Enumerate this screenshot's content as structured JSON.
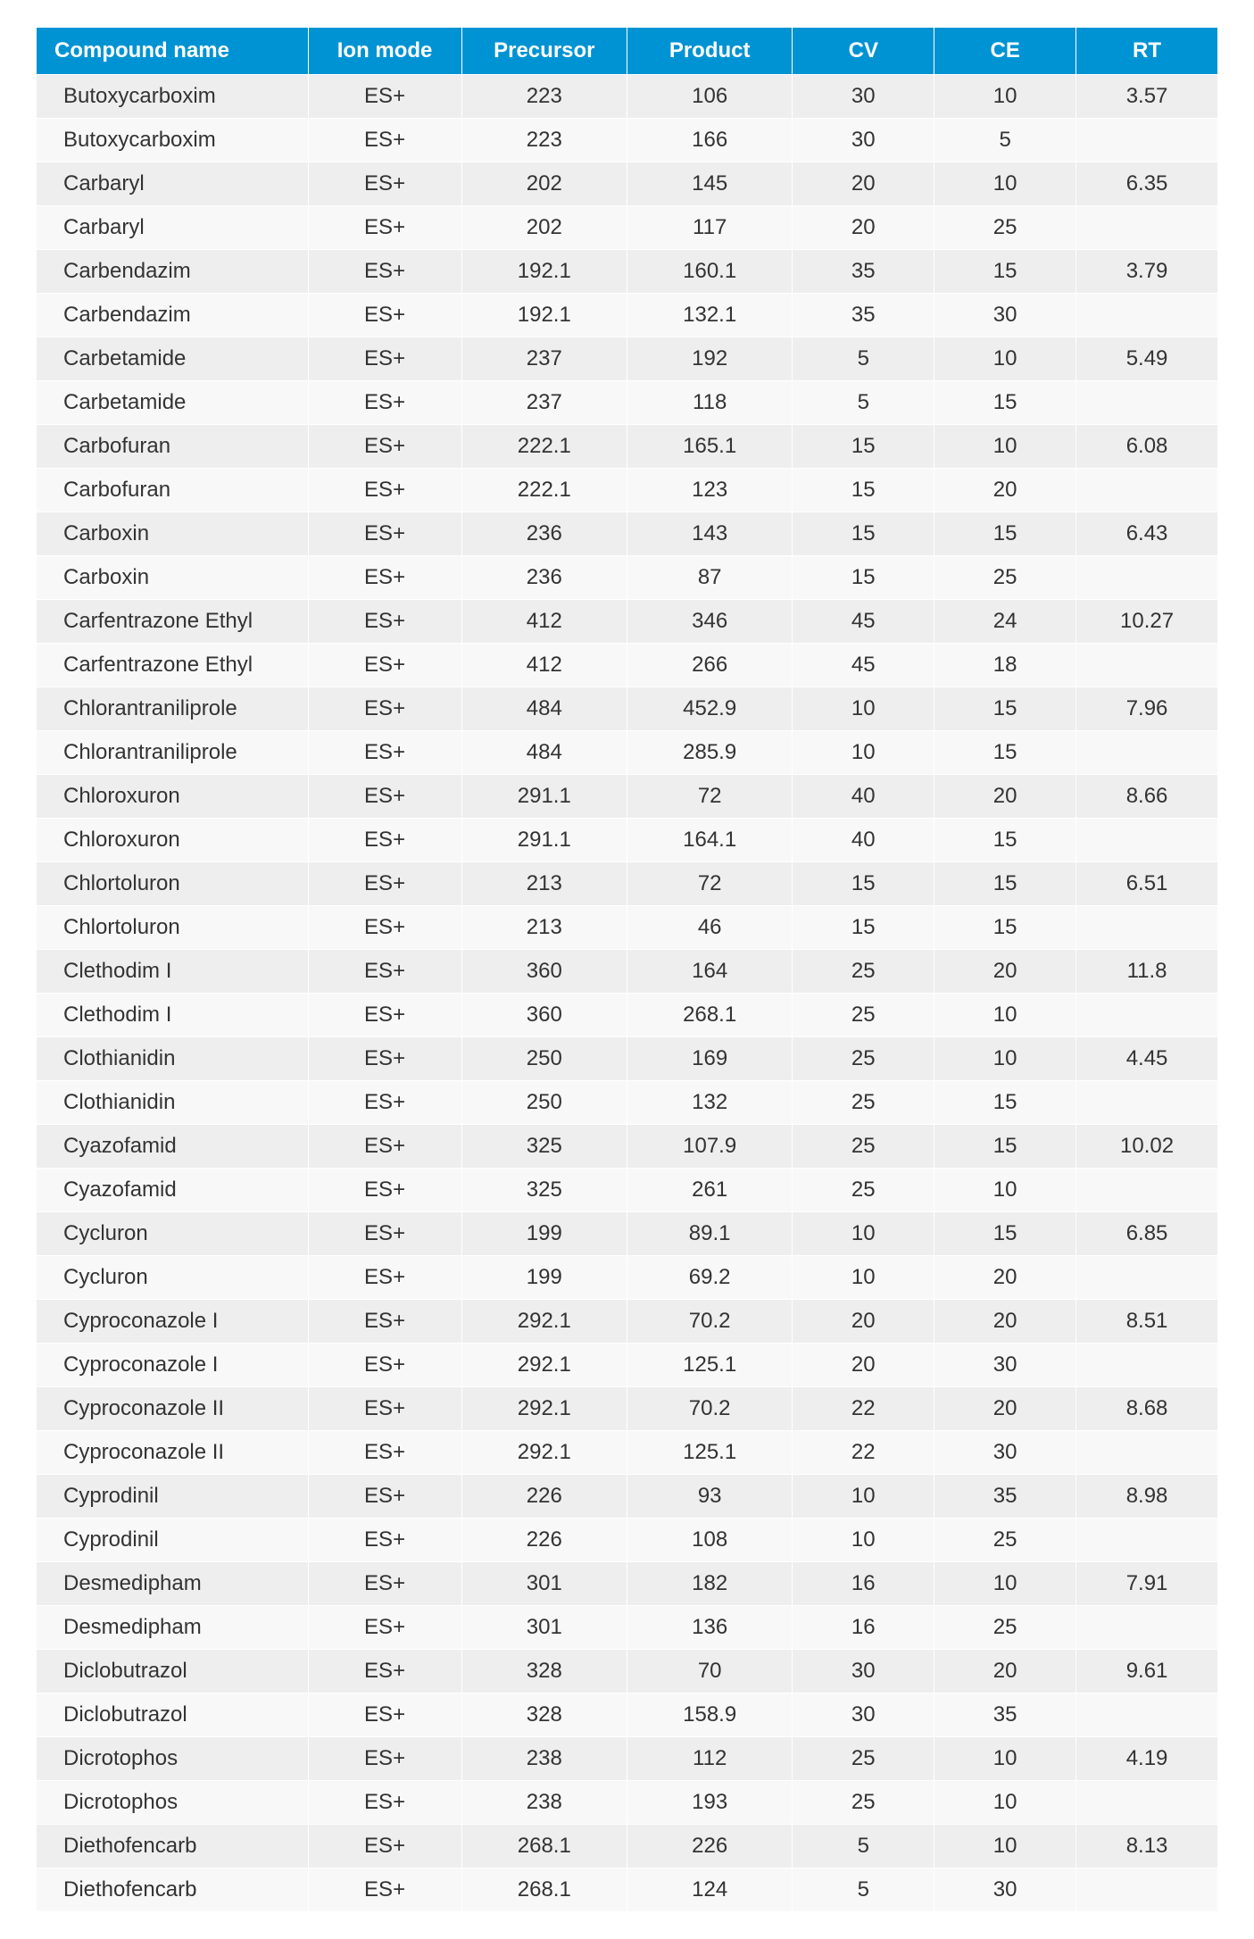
{
  "table": {
    "header_bg": "#0093d3",
    "header_text_color": "#ffffff",
    "row_alt_bg_even": "#eeeeee",
    "row_alt_bg_odd": "#f8f8f8",
    "cell_border_color": "#ffffff",
    "cell_text_color": "#333333",
    "columns": [
      {
        "label": "Compound name",
        "align": "left"
      },
      {
        "label": "Ion mode",
        "align": "center"
      },
      {
        "label": "Precursor",
        "align": "center"
      },
      {
        "label": "Product",
        "align": "center"
      },
      {
        "label": "CV",
        "align": "center"
      },
      {
        "label": "CE",
        "align": "center"
      },
      {
        "label": "RT",
        "align": "center"
      }
    ],
    "rows": [
      [
        "Butoxycarboxim",
        "ES+",
        "223",
        "106",
        "30",
        "10",
        "3.57"
      ],
      [
        "Butoxycarboxim",
        "ES+",
        "223",
        "166",
        "30",
        "5",
        ""
      ],
      [
        "Carbaryl",
        "ES+",
        "202",
        "145",
        "20",
        "10",
        "6.35"
      ],
      [
        "Carbaryl",
        "ES+",
        "202",
        "117",
        "20",
        "25",
        ""
      ],
      [
        "Carbendazim",
        "ES+",
        "192.1",
        "160.1",
        "35",
        "15",
        "3.79"
      ],
      [
        "Carbendazim",
        "ES+",
        "192.1",
        "132.1",
        "35",
        "30",
        ""
      ],
      [
        "Carbetamide",
        "ES+",
        "237",
        "192",
        "5",
        "10",
        "5.49"
      ],
      [
        "Carbetamide",
        "ES+",
        "237",
        "118",
        "5",
        "15",
        ""
      ],
      [
        "Carbofuran",
        "ES+",
        "222.1",
        "165.1",
        "15",
        "10",
        "6.08"
      ],
      [
        "Carbofuran",
        "ES+",
        "222.1",
        "123",
        "15",
        "20",
        ""
      ],
      [
        "Carboxin",
        "ES+",
        "236",
        "143",
        "15",
        "15",
        "6.43"
      ],
      [
        "Carboxin",
        "ES+",
        "236",
        "87",
        "15",
        "25",
        ""
      ],
      [
        "Carfentrazone Ethyl",
        "ES+",
        "412",
        "346",
        "45",
        "24",
        "10.27"
      ],
      [
        "Carfentrazone Ethyl",
        "ES+",
        "412",
        "266",
        "45",
        "18",
        ""
      ],
      [
        "Chlorantraniliprole",
        "ES+",
        "484",
        "452.9",
        "10",
        "15",
        "7.96"
      ],
      [
        "Chlorantraniliprole",
        "ES+",
        "484",
        "285.9",
        "10",
        "15",
        ""
      ],
      [
        "Chloroxuron",
        "ES+",
        "291.1",
        "72",
        "40",
        "20",
        "8.66"
      ],
      [
        "Chloroxuron",
        "ES+",
        "291.1",
        "164.1",
        "40",
        "15",
        ""
      ],
      [
        "Chlortoluron",
        "ES+",
        "213",
        "72",
        "15",
        "15",
        "6.51"
      ],
      [
        "Chlortoluron",
        "ES+",
        "213",
        "46",
        "15",
        "15",
        ""
      ],
      [
        "Clethodim I",
        "ES+",
        "360",
        "164",
        "25",
        "20",
        "11.8"
      ],
      [
        "Clethodim I",
        "ES+",
        "360",
        "268.1",
        "25",
        "10",
        ""
      ],
      [
        "Clothianidin",
        "ES+",
        "250",
        "169",
        "25",
        "10",
        "4.45"
      ],
      [
        "Clothianidin",
        "ES+",
        "250",
        "132",
        "25",
        "15",
        ""
      ],
      [
        "Cyazofamid",
        "ES+",
        "325",
        "107.9",
        "25",
        "15",
        "10.02"
      ],
      [
        "Cyazofamid",
        "ES+",
        "325",
        "261",
        "25",
        "10",
        ""
      ],
      [
        "Cycluron",
        "ES+",
        "199",
        "89.1",
        "10",
        "15",
        "6.85"
      ],
      [
        "Cycluron",
        "ES+",
        "199",
        "69.2",
        "10",
        "20",
        ""
      ],
      [
        "Cyproconazole I",
        "ES+",
        "292.1",
        "70.2",
        "20",
        "20",
        "8.51"
      ],
      [
        "Cyproconazole I",
        "ES+",
        "292.1",
        "125.1",
        "20",
        "30",
        ""
      ],
      [
        "Cyproconazole II",
        "ES+",
        "292.1",
        "70.2",
        "22",
        "20",
        "8.68"
      ],
      [
        "Cyproconazole II",
        "ES+",
        "292.1",
        "125.1",
        "22",
        "30",
        ""
      ],
      [
        "Cyprodinil",
        "ES+",
        "226",
        "93",
        "10",
        "35",
        "8.98"
      ],
      [
        "Cyprodinil",
        "ES+",
        "226",
        "108",
        "10",
        "25",
        ""
      ],
      [
        "Desmedipham",
        "ES+",
        "301",
        "182",
        "16",
        "10",
        "7.91"
      ],
      [
        "Desmedipham",
        "ES+",
        "301",
        "136",
        "16",
        "25",
        ""
      ],
      [
        "Diclobutrazol",
        "ES+",
        "328",
        "70",
        "30",
        "20",
        "9.61"
      ],
      [
        "Diclobutrazol",
        "ES+",
        "328",
        "158.9",
        "30",
        "35",
        ""
      ],
      [
        "Dicrotophos",
        "ES+",
        "238",
        "112",
        "25",
        "10",
        "4.19"
      ],
      [
        "Dicrotophos",
        "ES+",
        "238",
        "193",
        "25",
        "10",
        ""
      ],
      [
        "Diethofencarb",
        "ES+",
        "268.1",
        "226",
        "5",
        "10",
        "8.13"
      ],
      [
        "Diethofencarb",
        "ES+",
        "268.1",
        "124",
        "5",
        "30",
        ""
      ]
    ]
  }
}
